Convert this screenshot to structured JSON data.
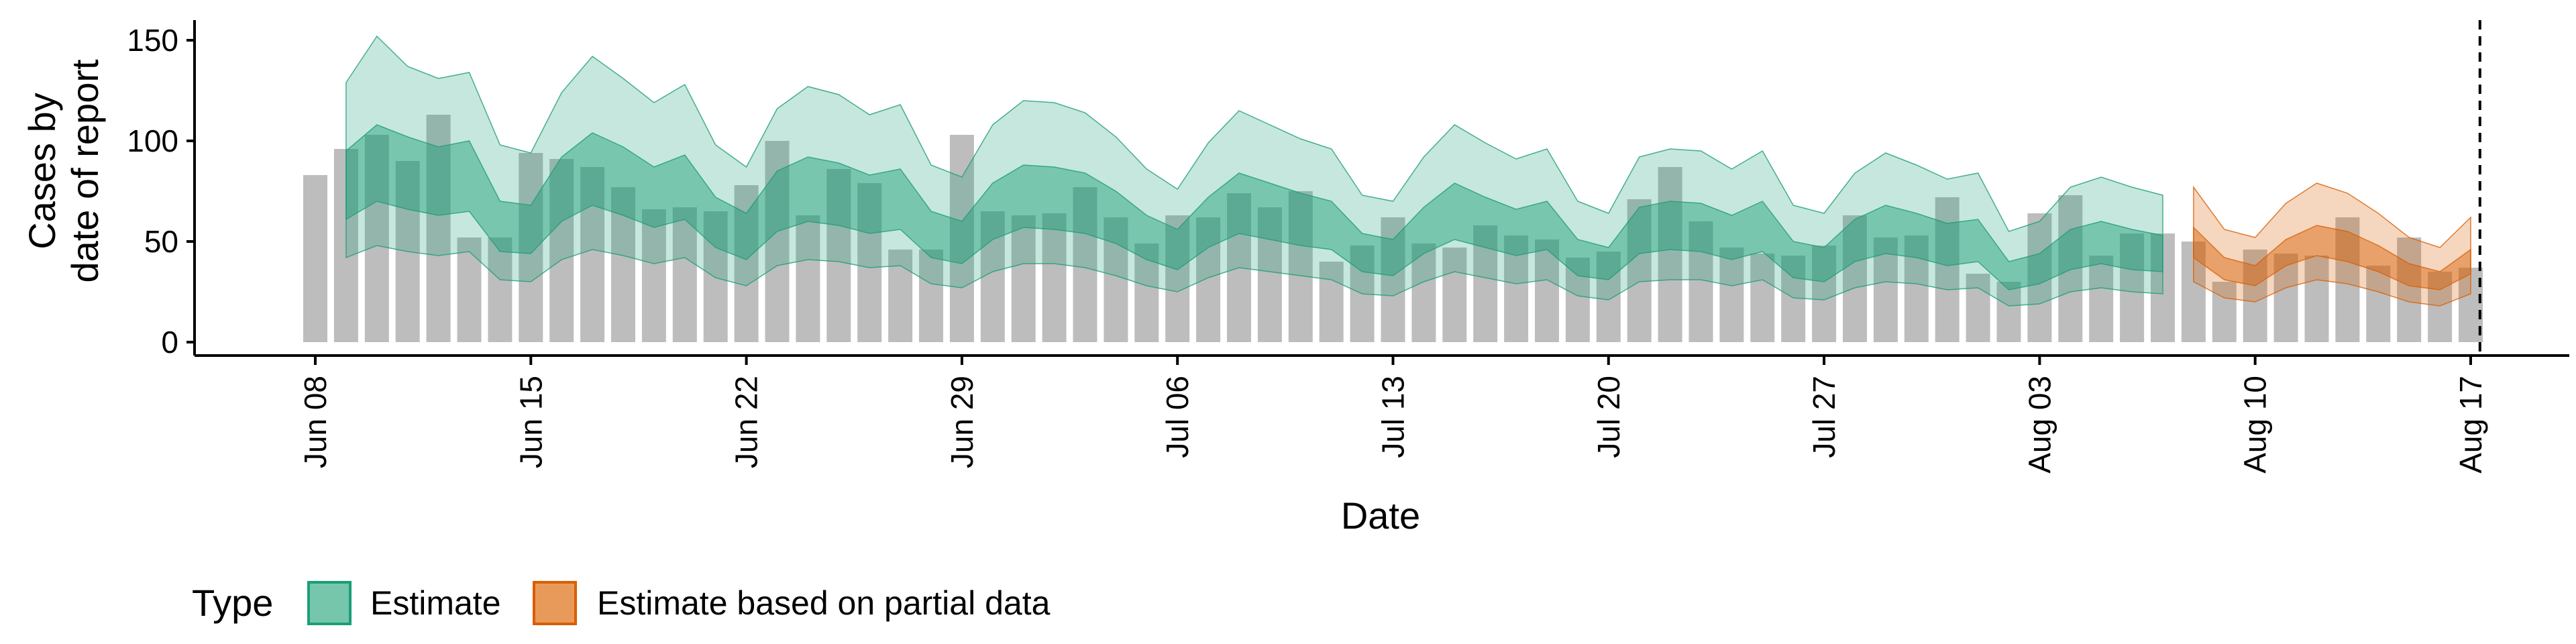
{
  "chart_data": {
    "type": "bar",
    "title": "",
    "xlabel": "Date",
    "ylabel_lines": [
      "Cases by",
      "date of report"
    ],
    "ylim": [
      -5,
      160
    ],
    "yticks": [
      0,
      50,
      100,
      150
    ],
    "xticks": [
      {
        "label": "Jun 08",
        "day": 0
      },
      {
        "label": "Jun 15",
        "day": 7
      },
      {
        "label": "Jun 22",
        "day": 14
      },
      {
        "label": "Jun 29",
        "day": 21
      },
      {
        "label": "Jul 06",
        "day": 28
      },
      {
        "label": "Jul 13",
        "day": 35
      },
      {
        "label": "Jul 20",
        "day": 42
      },
      {
        "label": "Jul 27",
        "day": 49
      },
      {
        "label": "Aug 03",
        "day": 56
      },
      {
        "label": "Aug 10",
        "day": 63
      },
      {
        "label": "Aug 17",
        "day": 70
      }
    ],
    "bars": {
      "start_date": "Jun 08",
      "values": [
        83,
        96,
        103,
        90,
        113,
        52,
        52,
        94,
        91,
        87,
        77,
        66,
        67,
        65,
        78,
        100,
        63,
        86,
        79,
        46,
        46,
        103,
        65,
        63,
        64,
        77,
        62,
        49,
        63,
        62,
        74,
        67,
        75,
        40,
        48,
        62,
        49,
        47,
        58,
        53,
        51,
        42,
        45,
        71,
        87,
        60,
        47,
        44,
        43,
        48,
        63,
        52,
        53,
        72,
        34,
        30,
        64,
        73,
        43,
        54,
        54,
        50,
        30,
        46,
        44,
        43,
        62,
        38,
        52,
        35,
        37
      ]
    },
    "bands": {
      "estimate": {
        "start_date": "Jun 09",
        "outer_upper": [
          129,
          152,
          137,
          131,
          134,
          98,
          94,
          124,
          142,
          131,
          119,
          128,
          98,
          87,
          116,
          127,
          123,
          113,
          118,
          88,
          82,
          108,
          120,
          119,
          114,
          102,
          86,
          76,
          99,
          115,
          108,
          101,
          96,
          73,
          70,
          92,
          108,
          99,
          91,
          96,
          70,
          64,
          92,
          96,
          95,
          86,
          95,
          68,
          64,
          84,
          94,
          88,
          81,
          84,
          55,
          60,
          77,
          82,
          77,
          73
        ],
        "inner_upper": [
          95,
          108,
          102,
          97,
          100,
          70,
          68,
          92,
          104,
          97,
          87,
          93,
          72,
          64,
          85,
          92,
          89,
          83,
          86,
          65,
          60,
          79,
          88,
          87,
          84,
          75,
          63,
          56,
          72,
          84,
          79,
          74,
          70,
          54,
          51,
          67,
          79,
          72,
          66,
          70,
          51,
          47,
          67,
          70,
          69,
          63,
          70,
          50,
          47,
          61,
          68,
          64,
          59,
          61,
          40,
          44,
          56,
          60,
          56,
          53
        ],
        "inner_lower": [
          61,
          70,
          66,
          63,
          65,
          45,
          44,
          60,
          68,
          63,
          57,
          61,
          47,
          41,
          55,
          60,
          58,
          54,
          56,
          42,
          39,
          51,
          57,
          56,
          54,
          49,
          41,
          36,
          47,
          54,
          51,
          48,
          46,
          35,
          33,
          44,
          51,
          47,
          43,
          46,
          33,
          31,
          44,
          46,
          45,
          41,
          45,
          32,
          30,
          40,
          44,
          42,
          38,
          40,
          26,
          29,
          36,
          39,
          36,
          35
        ],
        "outer_lower": [
          42,
          48,
          45,
          43,
          45,
          31,
          30,
          41,
          46,
          43,
          39,
          42,
          32,
          28,
          38,
          41,
          40,
          37,
          38,
          29,
          27,
          35,
          39,
          39,
          37,
          33,
          28,
          25,
          32,
          37,
          35,
          33,
          31,
          24,
          23,
          30,
          35,
          32,
          29,
          31,
          23,
          21,
          30,
          31,
          31,
          28,
          31,
          22,
          21,
          27,
          30,
          29,
          26,
          27,
          18,
          19,
          25,
          27,
          25,
          24
        ]
      },
      "partial": {
        "start_date": "Aug 08",
        "outer_upper": [
          77,
          56,
          52,
          69,
          79,
          74,
          64,
          52,
          47,
          62
        ],
        "inner_upper": [
          57,
          42,
          38,
          51,
          58,
          55,
          48,
          39,
          35,
          46
        ],
        "inner_lower": [
          42,
          31,
          28,
          38,
          43,
          40,
          35,
          28,
          26,
          34
        ],
        "outer_lower": [
          30,
          22,
          20,
          27,
          31,
          29,
          25,
          20,
          18,
          24
        ]
      }
    },
    "vline_day": 70.3,
    "legend": {
      "title": "Type",
      "position": "bottom",
      "items": [
        {
          "label": "Estimate",
          "color": "#1b9e77"
        },
        {
          "label": "Estimate based on partial data",
          "color": "#d95f02"
        }
      ]
    },
    "colors": {
      "bars": "#bdbdbd",
      "estimate": "#1b9e77",
      "partial": "#d95f02",
      "legend_estimate_fill": "#76c6ac",
      "legend_partial_fill": "#e89a5a"
    }
  }
}
